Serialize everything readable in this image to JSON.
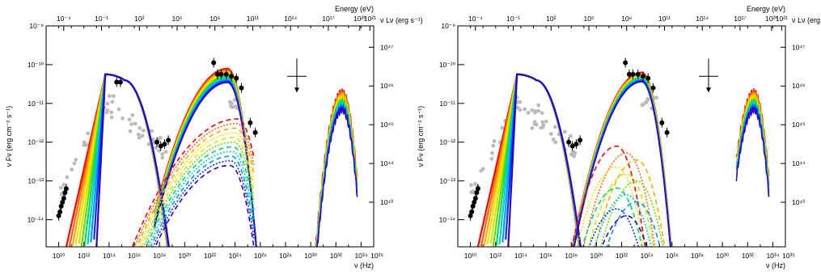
{
  "chart_data": [
    {
      "type": "line",
      "panel": "left",
      "xlabel": "ν (Hz)",
      "ylabel": "ν Fν (erg cm⁻² s⁻¹)",
      "top_axis_label": "Energy (eV)",
      "right_axis_label": "ν Lν (erg s⁻¹)",
      "x_log10_range": [
        9,
        35
      ],
      "y_log10_range": [
        -14.7,
        -9
      ],
      "x_ticks": [
        "10¹⁰",
        "10¹²",
        "10¹⁴",
        "10¹⁶",
        "10¹⁸",
        "10²⁰",
        "10²²",
        "10²⁴",
        "10²⁶",
        "10²⁸",
        "10³⁰",
        "10³²",
        "10³⁴",
        "10³⁵"
      ],
      "y_ticks": [
        "10⁻¹⁴",
        "10⁻¹³",
        "10⁻¹²",
        "10⁻¹¹",
        "10⁻¹⁰",
        "10⁻⁹"
      ],
      "top_ticks": [
        "10⁻⁴",
        "10⁻¹",
        "10²",
        "10⁵",
        "10⁸",
        "10¹¹",
        "10¹⁴",
        "10¹⁷",
        "10²⁰",
        "10²¹"
      ],
      "right_ticks": [
        "10⁴³",
        "10⁴⁴",
        "10⁴⁵",
        "10⁴⁶",
        "10⁴⁷"
      ],
      "black_data_points": [
        {
          "log_nu": 10.0,
          "log_flux": -13.9
        },
        {
          "log_nu": 10.1,
          "log_flux": -13.8
        },
        {
          "log_nu": 10.2,
          "log_flux": -13.65
        },
        {
          "log_nu": 10.3,
          "log_flux": -13.55
        },
        {
          "log_nu": 10.4,
          "log_flux": -13.45
        },
        {
          "log_nu": 10.5,
          "log_flux": -13.3
        },
        {
          "log_nu": 10.6,
          "log_flux": -13.2
        },
        {
          "log_nu": 14.6,
          "log_flux": -10.45
        },
        {
          "log_nu": 14.9,
          "log_flux": -10.45
        },
        {
          "log_nu": 17.8,
          "log_flux": -12.0
        },
        {
          "log_nu": 18.1,
          "log_flux": -12.1
        },
        {
          "log_nu": 18.4,
          "log_flux": -12.05
        },
        {
          "log_nu": 18.7,
          "log_flux": -11.95
        },
        {
          "log_nu": 22.3,
          "log_flux": -9.95
        },
        {
          "log_nu": 22.6,
          "log_flux": -10.25
        },
        {
          "log_nu": 22.9,
          "log_flux": -10.25
        },
        {
          "log_nu": 23.3,
          "log_flux": -10.25
        },
        {
          "log_nu": 23.7,
          "log_flux": -10.3
        },
        {
          "log_nu": 24.1,
          "log_flux": -10.35
        },
        {
          "log_nu": 24.5,
          "log_flux": -10.6
        },
        {
          "log_nu": 25.2,
          "log_flux": -11.5
        },
        {
          "log_nu": 25.6,
          "log_flux": -11.75
        }
      ],
      "upper_limit": {
        "log_nu": 28.9,
        "log_flux": -10.3
      }
    },
    {
      "type": "line",
      "panel": "right",
      "xlabel": "ν (Hz)",
      "ylabel": "ν Fν (erg cm⁻² s⁻¹)",
      "top_axis_label": "Energy (eV)",
      "right_axis_label": "ν Lν (erg s⁻¹)",
      "x_log10_range": [
        9,
        35
      ],
      "y_log10_range": [
        -14.7,
        -9
      ],
      "x_ticks": [
        "10¹⁰",
        "10¹²",
        "10¹⁴",
        "10¹⁶",
        "10¹⁸",
        "10²⁰",
        "10²²",
        "10²⁴",
        "10²⁶",
        "10²⁸",
        "10³⁰",
        "10³²",
        "10³⁴",
        "10³⁵"
      ],
      "y_ticks": [
        "10⁻¹⁴",
        "10⁻¹³",
        "10⁻¹²",
        "10⁻¹¹",
        "10⁻¹⁰",
        "10⁻⁹"
      ],
      "top_ticks": [
        "10⁻⁴",
        "10⁻¹",
        "10²",
        "10⁵",
        "10⁸",
        "10¹¹",
        "10¹⁴",
        "10¹⁷",
        "10²⁰",
        "10²¹"
      ],
      "right_ticks": [
        "10⁴³",
        "10⁴⁴",
        "10⁴⁵",
        "10⁴⁶",
        "10⁴⁷"
      ],
      "black_data_points": [
        {
          "log_nu": 10.0,
          "log_flux": -13.9
        },
        {
          "log_nu": 10.1,
          "log_flux": -13.8
        },
        {
          "log_nu": 10.2,
          "log_flux": -13.65
        },
        {
          "log_nu": 10.3,
          "log_flux": -13.55
        },
        {
          "log_nu": 10.4,
          "log_flux": -13.45
        },
        {
          "log_nu": 10.5,
          "log_flux": -13.3
        },
        {
          "log_nu": 10.6,
          "log_flux": -13.2
        },
        {
          "log_nu": 17.8,
          "log_flux": -12.0
        },
        {
          "log_nu": 18.1,
          "log_flux": -12.1
        },
        {
          "log_nu": 18.4,
          "log_flux": -12.05
        },
        {
          "log_nu": 18.7,
          "log_flux": -11.95
        },
        {
          "log_nu": 22.3,
          "log_flux": -9.95
        },
        {
          "log_nu": 22.6,
          "log_flux": -10.25
        },
        {
          "log_nu": 22.9,
          "log_flux": -10.25
        },
        {
          "log_nu": 23.3,
          "log_flux": -10.25
        },
        {
          "log_nu": 23.7,
          "log_flux": -10.3
        },
        {
          "log_nu": 24.1,
          "log_flux": -10.35
        },
        {
          "log_nu": 24.5,
          "log_flux": -10.6
        },
        {
          "log_nu": 25.2,
          "log_flux": -11.5
        },
        {
          "log_nu": 25.6,
          "log_flux": -11.75
        }
      ],
      "upper_limit": {
        "log_nu": 28.9,
        "log_flux": -10.3
      }
    }
  ],
  "colors": {
    "rainbow": [
      "#ff0000",
      "#ff6600",
      "#ffaa00",
      "#ffdd00",
      "#ccee00",
      "#66dd00",
      "#00dd66",
      "#00cccc",
      "#0099ff",
      "#0033ff",
      "#3300cc"
    ],
    "data_black": "#000000",
    "data_grey": "#bbbbbb"
  }
}
